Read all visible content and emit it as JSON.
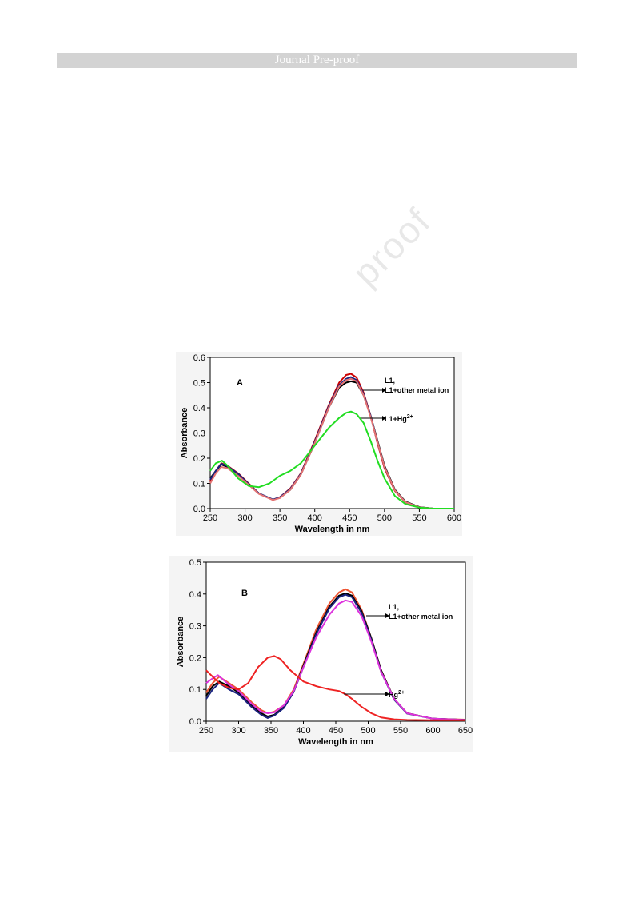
{
  "header": {
    "title": "Journal Pre-proof"
  },
  "watermark": {
    "text": "proof"
  },
  "chart_data": [
    {
      "type": "line",
      "panel": "A",
      "xlabel": "Wavelength in nm",
      "ylabel": "Absorbance",
      "xlim": [
        250,
        600
      ],
      "ylim": [
        0.0,
        0.6
      ],
      "xticks": [
        250,
        300,
        350,
        400,
        450,
        500,
        550,
        600
      ],
      "yticks": [
        0.0,
        0.1,
        0.2,
        0.3,
        0.4,
        0.5,
        0.6
      ],
      "annotations": [
        {
          "line1": "L1,",
          "line2": "L1+other metal ion"
        },
        {
          "line1": "L1+Hg",
          "sup": "2+"
        }
      ],
      "series": [
        {
          "color": "#cc0000",
          "x": [
            250,
            258,
            266,
            275,
            290,
            305,
            320,
            340,
            350,
            365,
            380,
            400,
            420,
            435,
            445,
            452,
            460,
            470,
            480,
            490,
            500,
            515,
            530,
            550,
            570,
            600
          ],
          "y": [
            0.11,
            0.15,
            0.18,
            0.17,
            0.14,
            0.1,
            0.06,
            0.035,
            0.045,
            0.08,
            0.14,
            0.27,
            0.41,
            0.5,
            0.53,
            0.535,
            0.52,
            0.46,
            0.37,
            0.26,
            0.16,
            0.07,
            0.025,
            0.005,
            0.0,
            0.0
          ]
        },
        {
          "color": "#000000",
          "x": [
            250,
            258,
            266,
            275,
            290,
            305,
            320,
            340,
            350,
            365,
            380,
            400,
            420,
            435,
            445,
            452,
            460,
            470,
            480,
            490,
            500,
            515,
            530,
            550,
            570,
            600
          ],
          "y": [
            0.12,
            0.15,
            0.175,
            0.165,
            0.135,
            0.095,
            0.06,
            0.035,
            0.043,
            0.075,
            0.135,
            0.26,
            0.4,
            0.48,
            0.5,
            0.505,
            0.5,
            0.45,
            0.37,
            0.27,
            0.17,
            0.075,
            0.028,
            0.006,
            0.0,
            0.0
          ]
        },
        {
          "color": "#1a237e",
          "x": [
            250,
            258,
            266,
            275,
            290,
            305,
            320,
            340,
            350,
            365,
            380,
            400,
            420,
            435,
            445,
            452,
            460,
            470,
            480,
            490,
            500,
            515,
            530,
            550,
            570,
            600
          ],
          "y": [
            0.115,
            0.15,
            0.178,
            0.168,
            0.138,
            0.098,
            0.06,
            0.036,
            0.045,
            0.078,
            0.138,
            0.265,
            0.405,
            0.49,
            0.515,
            0.522,
            0.51,
            0.455,
            0.37,
            0.265,
            0.165,
            0.072,
            0.026,
            0.005,
            0.0,
            0.0
          ]
        },
        {
          "color": "#e57373",
          "x": [
            250,
            258,
            266,
            275,
            290,
            305,
            320,
            340,
            350,
            365,
            380,
            400,
            420,
            435,
            445,
            452,
            460,
            470,
            480,
            490,
            500,
            515,
            530,
            550,
            570,
            600
          ],
          "y": [
            0.1,
            0.14,
            0.165,
            0.16,
            0.13,
            0.095,
            0.058,
            0.034,
            0.042,
            0.075,
            0.135,
            0.26,
            0.4,
            0.485,
            0.51,
            0.515,
            0.505,
            0.45,
            0.365,
            0.265,
            0.165,
            0.072,
            0.026,
            0.005,
            0.0,
            0.0
          ]
        },
        {
          "color": "#22dd22",
          "x": [
            250,
            258,
            267,
            275,
            290,
            305,
            320,
            335,
            350,
            365,
            380,
            400,
            420,
            435,
            445,
            452,
            460,
            470,
            480,
            490,
            500,
            515,
            530,
            550,
            570,
            600
          ],
          "y": [
            0.15,
            0.18,
            0.19,
            0.17,
            0.12,
            0.09,
            0.085,
            0.1,
            0.13,
            0.15,
            0.18,
            0.25,
            0.32,
            0.36,
            0.38,
            0.385,
            0.375,
            0.34,
            0.27,
            0.19,
            0.12,
            0.05,
            0.018,
            0.004,
            0.0,
            0.0
          ]
        }
      ]
    },
    {
      "type": "line",
      "panel": "B",
      "xlabel": "Wavelength in nm",
      "ylabel": "Absorbance",
      "xlim": [
        250,
        650
      ],
      "ylim": [
        0.0,
        0.5
      ],
      "xticks": [
        250,
        300,
        350,
        400,
        450,
        500,
        550,
        600,
        650
      ],
      "yticks": [
        0.0,
        0.1,
        0.2,
        0.3,
        0.4,
        0.5
      ],
      "annotations": [
        {
          "line1": "L1,",
          "line2": "L1+other metal ion"
        },
        {
          "line1": "Hg",
          "sup": "2+"
        }
      ],
      "series": [
        {
          "color": "#ee5533",
          "x": [
            250,
            260,
            270,
            285,
            300,
            320,
            335,
            345,
            355,
            370,
            385,
            400,
            420,
            440,
            455,
            465,
            475,
            490,
            505,
            520,
            540,
            560,
            600,
            650
          ],
          "y": [
            0.09,
            0.12,
            0.14,
            0.12,
            0.1,
            0.06,
            0.035,
            0.025,
            0.03,
            0.05,
            0.1,
            0.18,
            0.29,
            0.37,
            0.405,
            0.415,
            0.405,
            0.35,
            0.26,
            0.16,
            0.07,
            0.025,
            0.008,
            0.005
          ]
        },
        {
          "color": "#000000",
          "x": [
            250,
            260,
            270,
            285,
            300,
            320,
            335,
            345,
            355,
            370,
            385,
            400,
            420,
            440,
            455,
            465,
            475,
            490,
            505,
            520,
            540,
            560,
            600,
            650
          ],
          "y": [
            0.08,
            0.11,
            0.125,
            0.11,
            0.09,
            0.05,
            0.025,
            0.015,
            0.02,
            0.045,
            0.095,
            0.175,
            0.28,
            0.36,
            0.395,
            0.402,
            0.395,
            0.345,
            0.26,
            0.16,
            0.07,
            0.025,
            0.008,
            0.004
          ]
        },
        {
          "color": "#1a237e",
          "x": [
            250,
            260,
            270,
            285,
            300,
            320,
            335,
            345,
            355,
            370,
            385,
            400,
            420,
            440,
            455,
            465,
            475,
            490,
            505,
            520,
            540,
            560,
            600,
            650
          ],
          "y": [
            0.07,
            0.1,
            0.12,
            0.1,
            0.085,
            0.045,
            0.02,
            0.01,
            0.018,
            0.042,
            0.092,
            0.17,
            0.275,
            0.355,
            0.39,
            0.398,
            0.39,
            0.34,
            0.255,
            0.155,
            0.068,
            0.024,
            0.008,
            0.004
          ]
        },
        {
          "color": "#dd33dd",
          "x": [
            250,
            260,
            268,
            285,
            300,
            320,
            335,
            345,
            355,
            370,
            385,
            400,
            420,
            440,
            455,
            465,
            475,
            490,
            505,
            520,
            540,
            560,
            600,
            650
          ],
          "y": [
            0.12,
            0.135,
            0.145,
            0.115,
            0.095,
            0.055,
            0.03,
            0.025,
            0.028,
            0.05,
            0.095,
            0.17,
            0.265,
            0.335,
            0.37,
            0.38,
            0.375,
            0.33,
            0.25,
            0.155,
            0.07,
            0.025,
            0.008,
            0.004
          ]
        },
        {
          "color": "#ee2222",
          "x": [
            250,
            260,
            270,
            285,
            300,
            315,
            330,
            345,
            355,
            365,
            380,
            400,
            420,
            440,
            455,
            465,
            475,
            490,
            505,
            520,
            540,
            560,
            600,
            650
          ],
          "y": [
            0.16,
            0.14,
            0.12,
            0.105,
            0.1,
            0.12,
            0.17,
            0.2,
            0.205,
            0.195,
            0.16,
            0.125,
            0.11,
            0.1,
            0.095,
            0.085,
            0.07,
            0.045,
            0.025,
            0.012,
            0.006,
            0.004,
            0.003,
            0.003
          ]
        }
      ]
    }
  ]
}
